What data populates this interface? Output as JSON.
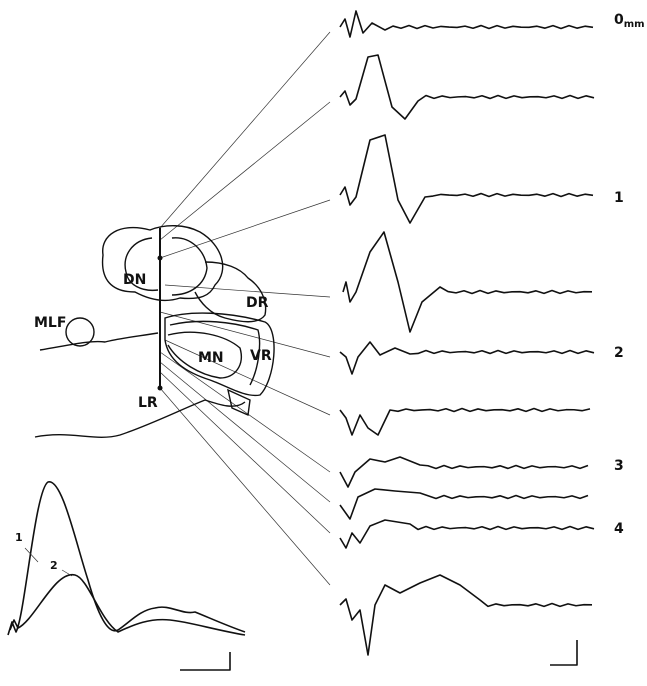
{
  "depth_labels": [
    "0",
    "1",
    "2",
    "3",
    "4"
  ],
  "depth_unit": "mm",
  "regions": [
    "DN",
    "DR",
    "MLF",
    "MN",
    "VR",
    "LR"
  ],
  "inset_labels": [
    "1",
    "2"
  ]
}
